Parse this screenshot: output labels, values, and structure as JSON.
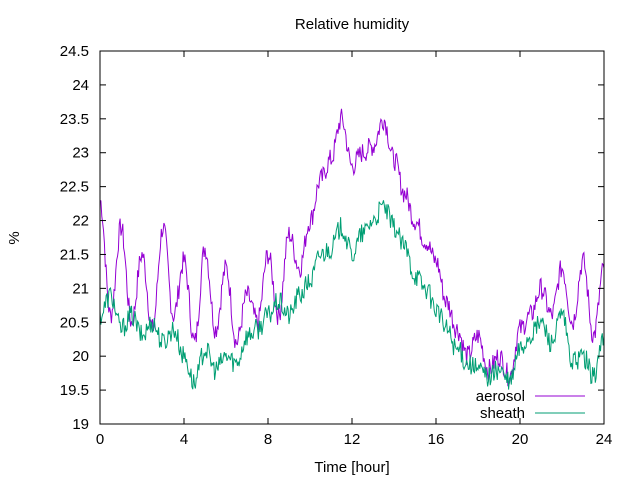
{
  "chart_data": {
    "type": "line",
    "title": "Relative humidity",
    "xlabel": "Time [hour]",
    "ylabel": "%",
    "xlim": [
      0,
      24
    ],
    "ylim": [
      19,
      24.5
    ],
    "x_ticks": [
      0,
      4,
      8,
      12,
      16,
      20,
      24
    ],
    "y_ticks": [
      19,
      19.5,
      20,
      20.5,
      21,
      21.5,
      22,
      22.5,
      23,
      23.5,
      24,
      24.5
    ],
    "grid": false,
    "legend_position": "bottom-right",
    "series": [
      {
        "name": "aerosol",
        "color": "#9400d3",
        "x": [
          0,
          0.5,
          1,
          1.5,
          2,
          2.5,
          3,
          3.5,
          4,
          4.5,
          5,
          5.5,
          6,
          6.5,
          7,
          7.5,
          8,
          8.5,
          9,
          9.5,
          10,
          10.5,
          11,
          11.5,
          12,
          12.5,
          13,
          13.5,
          14,
          14.5,
          15,
          15.5,
          16,
          16.5,
          17,
          17.5,
          18,
          18.5,
          19,
          19.5,
          20,
          20.5,
          21,
          21.5,
          22,
          22.5,
          23,
          23.5,
          24
        ],
        "values": [
          22.3,
          20.6,
          21.9,
          20.5,
          21.5,
          20.4,
          21.9,
          20.6,
          21.4,
          20.2,
          21.6,
          20.4,
          21.3,
          20.2,
          20.9,
          20.5,
          21.5,
          20.6,
          21.8,
          21.3,
          22.0,
          22.6,
          22.9,
          23.5,
          22.8,
          23.0,
          23.1,
          23.5,
          22.9,
          22.4,
          22.0,
          21.7,
          21.4,
          20.8,
          20.4,
          20.0,
          20.3,
          19.8,
          20.0,
          19.7,
          20.4,
          20.6,
          21.0,
          20.6,
          21.3,
          20.5,
          21.4,
          20.3,
          21.3
        ]
      },
      {
        "name": "sheath",
        "color": "#009e73",
        "x": [
          0,
          0.5,
          1,
          1.5,
          2,
          2.5,
          3,
          3.5,
          4,
          4.5,
          5,
          5.5,
          6,
          6.5,
          7,
          7.5,
          8,
          8.5,
          9,
          9.5,
          10,
          10.5,
          11,
          11.5,
          12,
          12.5,
          13,
          13.5,
          14,
          14.5,
          15,
          15.5,
          16,
          16.5,
          17,
          17.5,
          18,
          18.5,
          19,
          19.5,
          20,
          20.5,
          21,
          21.5,
          22,
          22.5,
          23,
          23.5,
          24
        ],
        "values": [
          20.6,
          20.9,
          20.4,
          20.6,
          20.3,
          20.5,
          20.2,
          20.4,
          20.0,
          19.6,
          20.1,
          19.8,
          20.0,
          19.9,
          20.3,
          20.4,
          20.6,
          20.8,
          20.6,
          20.9,
          21.1,
          21.5,
          21.6,
          21.9,
          21.5,
          21.8,
          22.0,
          22.2,
          21.9,
          21.6,
          21.2,
          21.0,
          20.7,
          20.4,
          20.1,
          19.9,
          19.8,
          19.7,
          19.8,
          19.6,
          20.1,
          20.3,
          20.5,
          20.2,
          20.6,
          19.9,
          20.0,
          19.7,
          20.3
        ]
      }
    ]
  }
}
